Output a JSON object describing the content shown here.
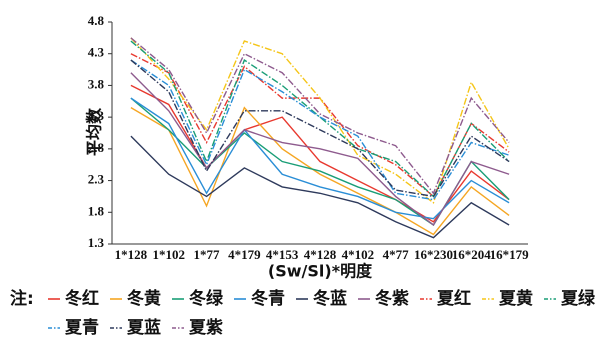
{
  "chart_data": {
    "type": "line",
    "y_label": "平均数",
    "x_label": "(Sw/Sl)*明度",
    "legend_title": "注:",
    "categories": [
      "1*128",
      "1*102",
      "1*77",
      "4*179",
      "4*153",
      "4*128",
      "4*102",
      "4*77",
      "16*230",
      "16*204",
      "16*179"
    ],
    "ylim": [
      1.3,
      4.8
    ],
    "yticks": [
      1.3,
      1.8,
      2.3,
      2.8,
      3.3,
      3.8,
      4.3,
      4.8
    ],
    "series": [
      {
        "name": "冬红",
        "color": "#e8392f",
        "style": "solid",
        "values": [
          3.8,
          3.5,
          2.5,
          3.1,
          3.3,
          2.6,
          2.3,
          2.0,
          1.65,
          2.45,
          2.0
        ]
      },
      {
        "name": "冬黄",
        "color": "#f5a623",
        "style": "solid",
        "values": [
          3.45,
          3.1,
          1.9,
          3.45,
          2.8,
          2.4,
          2.1,
          1.8,
          1.45,
          2.2,
          1.75
        ]
      },
      {
        "name": "冬绿",
        "color": "#1a9e77",
        "style": "solid",
        "values": [
          3.6,
          3.1,
          2.5,
          3.05,
          2.6,
          2.45,
          2.2,
          2.0,
          1.6,
          2.6,
          2.0
        ]
      },
      {
        "name": "冬青",
        "color": "#2a8ed6",
        "style": "solid",
        "values": [
          3.6,
          3.2,
          2.1,
          3.1,
          2.4,
          2.2,
          2.05,
          1.8,
          1.7,
          2.3,
          1.95
        ]
      },
      {
        "name": "冬蓝",
        "color": "#2e3a5c",
        "style": "solid",
        "values": [
          3.0,
          2.4,
          2.05,
          2.5,
          2.2,
          2.1,
          1.95,
          1.65,
          1.4,
          1.95,
          1.6
        ]
      },
      {
        "name": "冬紫",
        "color": "#8e5b8e",
        "style": "solid",
        "values": [
          4.0,
          3.4,
          2.5,
          3.1,
          2.9,
          2.8,
          2.65,
          2.05,
          1.6,
          2.6,
          2.4
        ]
      },
      {
        "name": "夏红",
        "color": "#e8392f",
        "style": "dashdot",
        "values": [
          4.3,
          4.0,
          2.9,
          4.1,
          3.6,
          3.6,
          2.85,
          2.55,
          2.05,
          3.2,
          2.75
        ]
      },
      {
        "name": "夏黄",
        "color": "#f5c518",
        "style": "dashdot",
        "values": [
          4.55,
          3.9,
          3.1,
          4.5,
          4.3,
          3.6,
          2.7,
          2.4,
          1.95,
          3.85,
          2.8
        ]
      },
      {
        "name": "夏绿",
        "color": "#1a9e77",
        "style": "dashdot",
        "values": [
          4.5,
          4.0,
          2.6,
          4.2,
          3.8,
          3.3,
          2.8,
          2.6,
          2.05,
          3.2,
          2.6
        ]
      },
      {
        "name": "夏青",
        "color": "#2a8ed6",
        "style": "dashdot",
        "values": [
          4.2,
          3.8,
          2.55,
          4.05,
          3.7,
          3.3,
          3.0,
          2.1,
          2.0,
          2.9,
          2.7
        ]
      },
      {
        "name": "夏蓝",
        "color": "#2e3a5c",
        "style": "dashdot",
        "values": [
          4.2,
          3.7,
          2.45,
          3.4,
          3.4,
          3.1,
          2.8,
          2.15,
          2.05,
          3.0,
          2.6
        ]
      },
      {
        "name": "夏紫",
        "color": "#8e5b8e",
        "style": "dashdot",
        "values": [
          4.55,
          4.05,
          3.05,
          4.3,
          4.0,
          3.35,
          3.05,
          2.85,
          2.1,
          3.6,
          2.9
        ]
      }
    ]
  }
}
